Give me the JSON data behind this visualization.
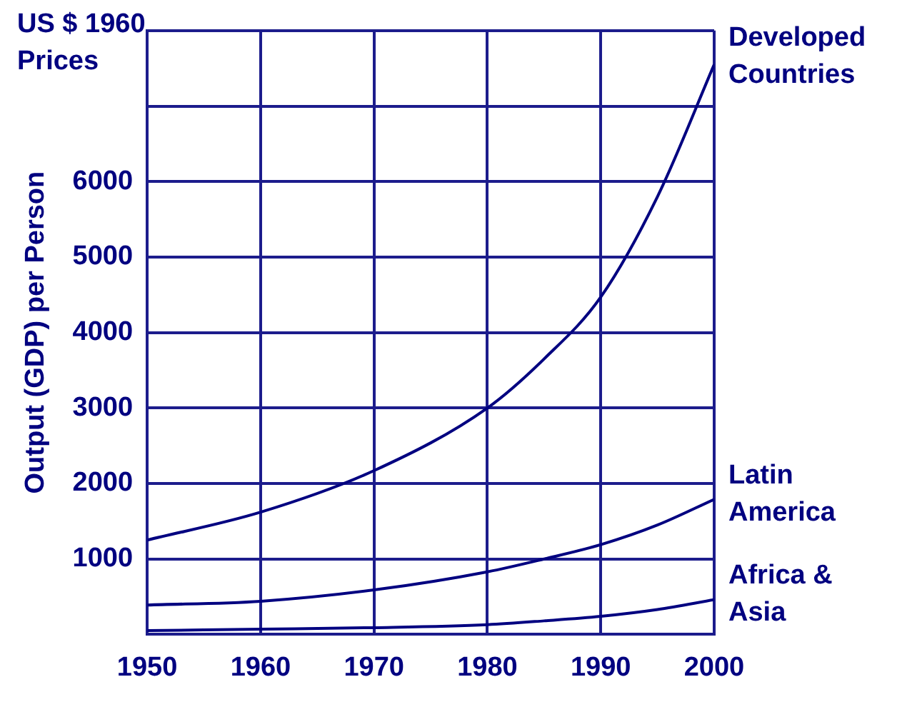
{
  "chart_data": {
    "type": "line",
    "title": "US $ 1960 Prices",
    "ylabel": "Output (GDP) per Person",
    "x": [
      1950,
      1960,
      1970,
      1980,
      1985,
      1990,
      1995,
      2000
    ],
    "xlim": [
      1950,
      2000
    ],
    "xticks": [
      1950,
      1960,
      1970,
      1980,
      1990,
      2000
    ],
    "ylim": [
      0,
      8000
    ],
    "yticks": [
      {
        "value": 0,
        "label": null
      },
      1000,
      2000,
      3000,
      4000,
      5000,
      6000,
      {
        "value": 7000,
        "label": null
      },
      {
        "value": 8000,
        "label": null
      }
    ],
    "grid": true,
    "legend": false,
    "marker": "none",
    "line_style": "solid",
    "series": [
      {
        "name": "Developed Countries",
        "color": "#000080",
        "values": [
          1250,
          1620,
          2170,
          3000,
          3650,
          4470,
          5800,
          7550
        ]
      },
      {
        "name": "Latin America",
        "color": "#000080",
        "values": [
          390,
          440,
          590,
          830,
          1000,
          1190,
          1450,
          1790
        ]
      },
      {
        "name": "Africa & Asia",
        "color": "#000080",
        "values": [
          50,
          70,
          90,
          130,
          180,
          240,
          330,
          460
        ]
      }
    ]
  }
}
